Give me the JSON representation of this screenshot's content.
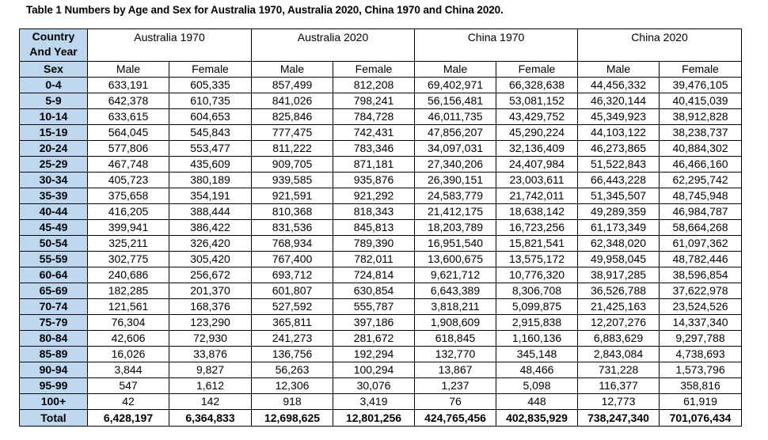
{
  "caption": "Table 1 Numbers by Age and Sex for Australia 1970, Australia 2020, China 1970 and China 2020.",
  "header": {
    "country_label_line1": "Country",
    "country_label_line2": "And Year",
    "groups": [
      "Australia 1970",
      "Australia 2020",
      "China 1970",
      "China 2020"
    ],
    "sex_label": "Sex",
    "male": "Male",
    "female": "Female"
  },
  "rows": [
    {
      "age": "0-4",
      "values": [
        "633,191",
        "605,335",
        "857,499",
        "812,208",
        "69,402,971",
        "66,328,638",
        "44,456,332",
        "39,476,105"
      ]
    },
    {
      "age": "5-9",
      "values": [
        "642,378",
        "610,735",
        "841,026",
        "798,241",
        "56,156,481",
        "53,081,152",
        "46,320,144",
        "40,415,039"
      ]
    },
    {
      "age": "10-14",
      "values": [
        "633,615",
        "604,653",
        "825,846",
        "784,728",
        "46,011,735",
        "43,429,752",
        "45,349,923",
        "38,912,828"
      ]
    },
    {
      "age": "15-19",
      "values": [
        "564,045",
        "545,843",
        "777,475",
        "742,431",
        "47,856,207",
        "45,290,224",
        "44,103,122",
        "38,238,737"
      ]
    },
    {
      "age": "20-24",
      "values": [
        "577,806",
        "553,477",
        "811,222",
        "783,346",
        "34,097,031",
        "32,136,409",
        "46,273,865",
        "40,884,302"
      ]
    },
    {
      "age": "25-29",
      "values": [
        "467,748",
        "435,609",
        "909,705",
        "871,181",
        "27,340,206",
        "24,407,984",
        "51,522,843",
        "46,466,160"
      ]
    },
    {
      "age": "30-34",
      "values": [
        "405,723",
        "380,189",
        "939,585",
        "935,876",
        "26,390,151",
        "23,003,611",
        "66,443,228",
        "62,295,742"
      ]
    },
    {
      "age": "35-39",
      "values": [
        "375,658",
        "354,191",
        "921,591",
        "921,292",
        "24,583,779",
        "21,742,011",
        "51,345,507",
        "48,745,948"
      ]
    },
    {
      "age": "40-44",
      "values": [
        "416,205",
        "388,444",
        "810,368",
        "818,343",
        "21,412,175",
        "18,638,142",
        "49,289,359",
        "46,984,787"
      ]
    },
    {
      "age": "45-49",
      "values": [
        "399,941",
        "386,422",
        "831,536",
        "845,813",
        "18,203,789",
        "16,723,256",
        "61,173,349",
        "58,664,268"
      ]
    },
    {
      "age": "50-54",
      "values": [
        "325,211",
        "326,420",
        "768,934",
        "789,390",
        "16,951,540",
        "15,821,541",
        "62,348,020",
        "61,097,362"
      ]
    },
    {
      "age": "55-59",
      "values": [
        "302,775",
        "305,420",
        "767,400",
        "782,011",
        "13,600,675",
        "13,575,172",
        "49,958,045",
        "48,782,446"
      ]
    },
    {
      "age": "60-64",
      "values": [
        "240,686",
        "256,672",
        "693,712",
        "724,814",
        "9,621,712",
        "10,776,320",
        "38,917,285",
        "38,596,854"
      ]
    },
    {
      "age": "65-69",
      "values": [
        "182,285",
        "201,370",
        "601,807",
        "630,854",
        "6,643,389",
        "8,306,708",
        "36,526,788",
        "37,622,978"
      ]
    },
    {
      "age": "70-74",
      "values": [
        "121,561",
        "168,376",
        "527,592",
        "555,787",
        "3,818,211",
        "5,099,875",
        "21,425,163",
        "23,524,526"
      ]
    },
    {
      "age": "75-79",
      "values": [
        "76,304",
        "123,290",
        "365,811",
        "397,186",
        "1,908,609",
        "2,915,838",
        "12,207,276",
        "14,337,340"
      ]
    },
    {
      "age": "80-84",
      "values": [
        "42,606",
        "72,930",
        "241,273",
        "281,672",
        "618,845",
        "1,160,136",
        "6,883,629",
        "9,297,788"
      ]
    },
    {
      "age": "85-89",
      "values": [
        "16,026",
        "33,876",
        "136,756",
        "192,294",
        "132,770",
        "345,148",
        "2,843,084",
        "4,738,693"
      ]
    },
    {
      "age": "90-94",
      "values": [
        "3,844",
        "9,827",
        "56,263",
        "100,294",
        "13,867",
        "48,466",
        "731,228",
        "1,573,796"
      ]
    },
    {
      "age": "95-99",
      "values": [
        "547",
        "1,612",
        "12,306",
        "30,076",
        "1,237",
        "5,098",
        "116,377",
        "358,816"
      ]
    },
    {
      "age": "100+",
      "values": [
        "42",
        "142",
        "918",
        "3,419",
        "76",
        "448",
        "12,773",
        "61,919"
      ]
    }
  ],
  "total": {
    "label": "Total",
    "values": [
      "6,428,197",
      "6,364,833",
      "12,698,625",
      "12,801,256",
      "424,765,456",
      "402,835,929",
      "738,247,340",
      "701,076,434"
    ]
  },
  "colors": {
    "label_fill": "#bdd7ee",
    "border": "#000000"
  }
}
